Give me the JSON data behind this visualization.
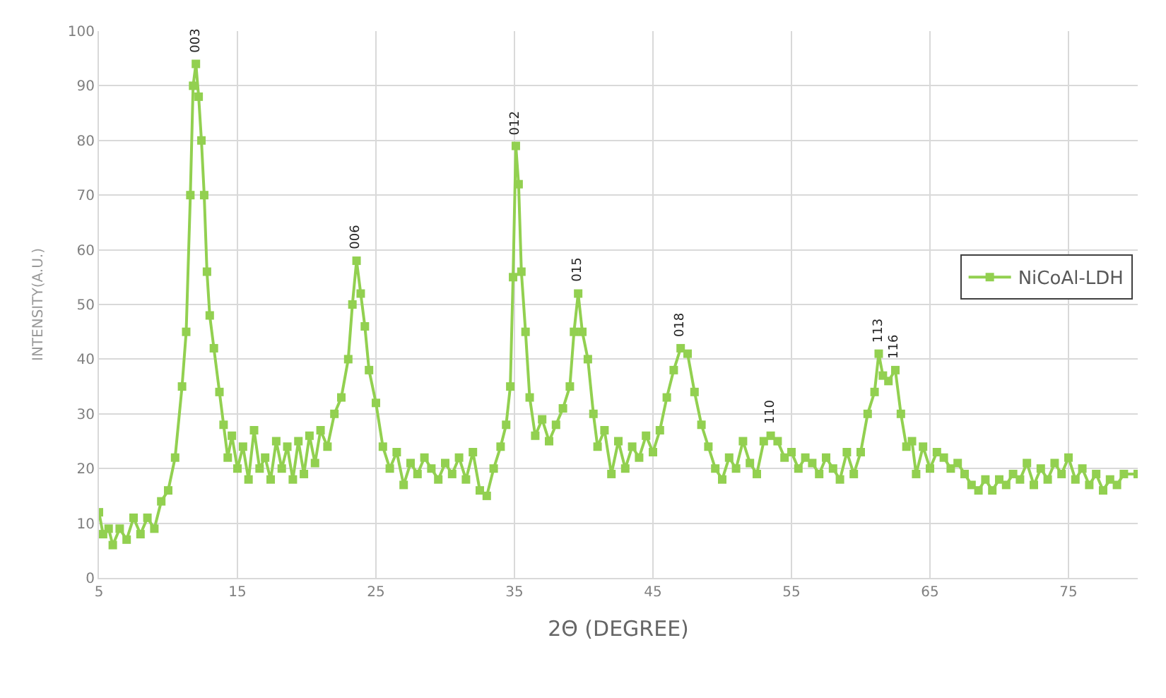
{
  "chart_data": {
    "type": "line",
    "xlabel": "2Θ (DEGREE)",
    "ylabel": "INTENSITY(A.U.)",
    "xlim": [
      5,
      80
    ],
    "xticks": [
      5,
      15,
      25,
      35,
      45,
      55,
      65,
      75
    ],
    "ylim": [
      0,
      100
    ],
    "yticks": [
      0,
      10,
      20,
      30,
      40,
      50,
      60,
      70,
      80,
      90,
      100
    ],
    "grid": true,
    "legend": "right",
    "marker": "square",
    "line_style": "solid",
    "series": [
      {
        "name": "NiCoAl-LDH",
        "color": "#92d050",
        "x": [
          5,
          5.3,
          5.7,
          6,
          6.5,
          7,
          7.5,
          8,
          8.5,
          9,
          9.5,
          10,
          10.5,
          11,
          11.3,
          11.6,
          11.8,
          12.0,
          12.2,
          12.4,
          12.6,
          12.8,
          13.0,
          13.3,
          13.7,
          14,
          14.3,
          14.6,
          15,
          15.4,
          15.8,
          16.2,
          16.6,
          17,
          17.4,
          17.8,
          18.2,
          18.6,
          19,
          19.4,
          19.8,
          20.2,
          20.6,
          21,
          21.5,
          22,
          22.5,
          23,
          23.3,
          23.6,
          23.9,
          24.2,
          24.5,
          25,
          25.5,
          26,
          26.5,
          27,
          27.5,
          28,
          28.5,
          29,
          29.5,
          30,
          30.5,
          31,
          31.5,
          32,
          32.5,
          33,
          33.5,
          34,
          34.4,
          34.7,
          34.9,
          35.1,
          35.3,
          35.5,
          35.8,
          36.1,
          36.5,
          37,
          37.5,
          38,
          38.5,
          39,
          39.3,
          39.6,
          39.9,
          40.3,
          40.7,
          41,
          41.5,
          42,
          42.5,
          43,
          43.5,
          44,
          44.5,
          45,
          45.5,
          46,
          46.5,
          47,
          47.5,
          48,
          48.5,
          49,
          49.5,
          50,
          50.5,
          51,
          51.5,
          52,
          52.5,
          53,
          53.5,
          54,
          54.5,
          55,
          55.5,
          56,
          56.5,
          57,
          57.5,
          58,
          58.5,
          59,
          59.5,
          60,
          60.5,
          61,
          61.3,
          61.6,
          62,
          62.5,
          62.9,
          63.3,
          63.7,
          64,
          64.5,
          65,
          65.5,
          66,
          66.5,
          67,
          67.5,
          68,
          68.5,
          69,
          69.5,
          70,
          70.5,
          71,
          71.5,
          72,
          72.5,
          73,
          73.5,
          74,
          74.5,
          75,
          75.5,
          76,
          76.5,
          77,
          77.5,
          78,
          78.5,
          79,
          80
        ],
        "values": [
          12,
          8,
          9,
          6,
          9,
          7,
          11,
          8,
          11,
          9,
          14,
          16,
          22,
          35,
          45,
          70,
          90,
          94,
          88,
          80,
          70,
          56,
          48,
          42,
          34,
          28,
          22,
          26,
          20,
          24,
          18,
          27,
          20,
          22,
          18,
          25,
          20,
          24,
          18,
          25,
          19,
          26,
          21,
          27,
          24,
          30,
          33,
          40,
          50,
          58,
          52,
          46,
          38,
          32,
          24,
          20,
          23,
          17,
          21,
          19,
          22,
          20,
          18,
          21,
          19,
          22,
          18,
          23,
          16,
          15,
          20,
          24,
          28,
          35,
          55,
          79,
          72,
          56,
          45,
          33,
          26,
          29,
          25,
          28,
          31,
          35,
          45,
          52,
          45,
          40,
          30,
          24,
          27,
          19,
          25,
          20,
          24,
          22,
          26,
          23,
          27,
          33,
          38,
          42,
          41,
          34,
          28,
          24,
          20,
          18,
          22,
          20,
          25,
          21,
          19,
          25,
          26,
          25,
          22,
          23,
          20,
          22,
          21,
          19,
          22,
          20,
          18,
          23,
          19,
          23,
          30,
          34,
          41,
          37,
          36,
          38,
          30,
          24,
          25,
          19,
          24,
          20,
          23,
          22,
          20,
          21,
          19,
          17,
          16,
          18,
          16,
          18,
          17,
          19,
          18,
          21,
          17,
          20,
          18,
          21,
          19,
          22,
          18,
          20,
          17,
          19,
          16,
          18,
          17,
          19,
          19
        ]
      }
    ],
    "annotations": [
      {
        "text": "003",
        "x": 12,
        "y": 94
      },
      {
        "text": "006",
        "x": 23.6,
        "y": 58
      },
      {
        "text": "012",
        "x": 35.1,
        "y": 79
      },
      {
        "text": "015",
        "x": 39.6,
        "y": 52
      },
      {
        "text": "018",
        "x": 47,
        "y": 42
      },
      {
        "text": "110",
        "x": 53.5,
        "y": 26
      },
      {
        "text": "113",
        "x": 61.3,
        "y": 41
      },
      {
        "text": "116",
        "x": 62.5,
        "y": 38
      }
    ]
  }
}
